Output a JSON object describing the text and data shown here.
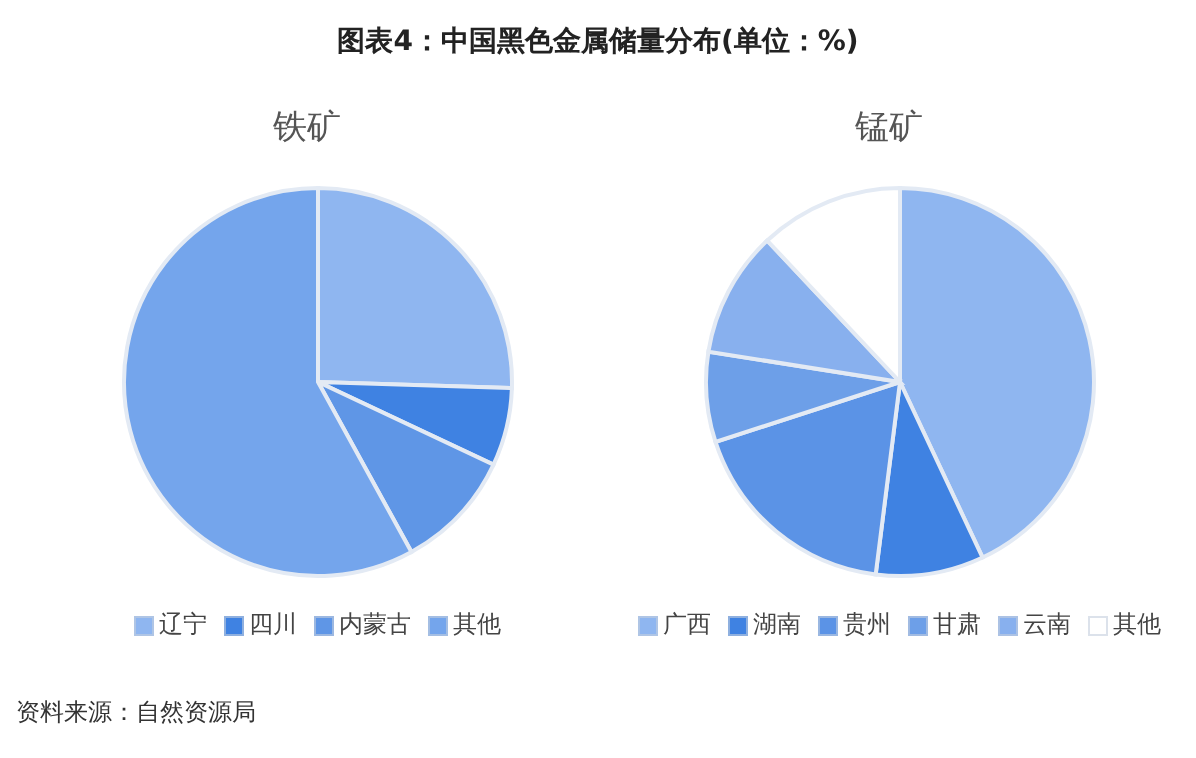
{
  "chart_data": [
    {
      "type": "pie",
      "title": "铁矿",
      "annotations": [
        "图表4：中国黑色金属储量分布(单位：%)",
        "资料来源：自然资源局"
      ],
      "legend": "bottom",
      "categories": [
        "辽宁",
        "四川",
        "内蒙古",
        "其他"
      ],
      "values": [
        25.5,
        6.5,
        10,
        58
      ],
      "colors": [
        "#8fb6f0",
        "#3f82e2",
        "#5f96e6",
        "#74a5ec"
      ]
    },
    {
      "type": "pie",
      "title": "锰矿",
      "legend": "bottom",
      "categories": [
        "广西",
        "湖南",
        "贵州",
        "甘肃",
        "云南",
        "其他"
      ],
      "values": [
        43,
        9,
        18,
        7.5,
        10.5,
        12
      ],
      "colors": [
        "#8fb6f0",
        "#3f82e2",
        "#5b93e6",
        "#6d9fe8",
        "#88b0ee",
        "#ffffff"
      ]
    }
  ]
}
